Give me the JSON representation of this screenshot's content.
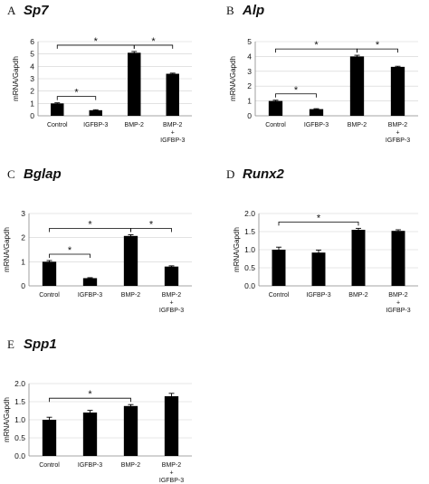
{
  "chart_data": [
    {
      "panel": "A",
      "title": "Sp7",
      "type": "bar",
      "ylabel": "mRNA/Gapdh",
      "ylim": [
        0,
        6
      ],
      "yticks": [
        "0",
        "1",
        "2",
        "3",
        "4",
        "5",
        "6"
      ],
      "categories": [
        [
          "Control"
        ],
        [
          "IGFBP-3"
        ],
        [
          "BMP-2"
        ],
        [
          "BMP-2",
          "+",
          "IGFBP-3"
        ]
      ],
      "values": [
        1.0,
        0.45,
        5.1,
        3.4
      ],
      "errors": [
        0.05,
        0.04,
        0.1,
        0.05
      ],
      "significance": [
        {
          "from": 0,
          "to": 1,
          "label": "*"
        },
        {
          "from": 0,
          "to": 2,
          "label": "*"
        },
        {
          "from": 2,
          "to": 3,
          "label": "*"
        }
      ],
      "grid": true
    },
    {
      "panel": "B",
      "title": "Alp",
      "type": "bar",
      "ylabel": "mRNA/Gapdh",
      "ylim": [
        0,
        5
      ],
      "yticks": [
        "0",
        "1",
        "2",
        "3",
        "4",
        "5"
      ],
      "categories": [
        [
          "Control"
        ],
        [
          "IGFBP-3"
        ],
        [
          "BMP-2"
        ],
        [
          "BMP-2",
          "+",
          "IGFBP-3"
        ]
      ],
      "values": [
        1.0,
        0.45,
        4.0,
        3.3
      ],
      "errors": [
        0.05,
        0.03,
        0.08,
        0.04
      ],
      "significance": [
        {
          "from": 0,
          "to": 1,
          "label": "*"
        },
        {
          "from": 0,
          "to": 2,
          "label": "*"
        },
        {
          "from": 2,
          "to": 3,
          "label": "*"
        }
      ],
      "grid": true
    },
    {
      "panel": "C",
      "title": "Bglap",
      "type": "bar",
      "ylabel": "mRNA/Gapdh",
      "ylim": [
        0,
        3
      ],
      "yticks": [
        "0",
        "1",
        "2",
        "3"
      ],
      "categories": [
        [
          "Control"
        ],
        [
          "IGFBP-3"
        ],
        [
          "BMP-2"
        ],
        [
          "BMP-2",
          "+",
          "IGFBP-3"
        ]
      ],
      "values": [
        1.0,
        0.32,
        2.07,
        0.8
      ],
      "errors": [
        0.05,
        0.02,
        0.05,
        0.03
      ],
      "significance": [
        {
          "from": 0,
          "to": 1,
          "label": "*"
        },
        {
          "from": 0,
          "to": 2,
          "label": "*"
        },
        {
          "from": 2,
          "to": 3,
          "label": "*"
        }
      ],
      "grid": true
    },
    {
      "panel": "D",
      "title": "Runx2",
      "type": "bar",
      "ylabel": "mRNA/Gapdh",
      "ylim": [
        0,
        2.0
      ],
      "yticks": [
        "0.0",
        "0.5",
        "1.0",
        "1.5",
        "2.0"
      ],
      "categories": [
        [
          "Control"
        ],
        [
          "IGFBP-3"
        ],
        [
          "BMP-2"
        ],
        [
          "BMP-2",
          "+",
          "IGFBP-3"
        ]
      ],
      "values": [
        1.0,
        0.92,
        1.55,
        1.52
      ],
      "errors": [
        0.07,
        0.07,
        0.04,
        0.03
      ],
      "significance": [
        {
          "from": 0,
          "to": 2,
          "label": "*"
        }
      ],
      "grid": true
    },
    {
      "panel": "E",
      "title": "Spp1",
      "type": "bar",
      "ylabel": "mRNA/Gapdh",
      "ylim": [
        0,
        2.0
      ],
      "yticks": [
        "0.0",
        "0.5",
        "1.0",
        "1.5",
        "2.0"
      ],
      "categories": [
        [
          "Control"
        ],
        [
          "IGFBP-3"
        ],
        [
          "BMP-2"
        ],
        [
          "BMP-2",
          "+",
          "IGFBP-3"
        ]
      ],
      "values": [
        1.0,
        1.2,
        1.38,
        1.65
      ],
      "errors": [
        0.07,
        0.06,
        0.04,
        0.08
      ],
      "significance": [
        {
          "from": 0,
          "to": 2,
          "label": "*"
        }
      ],
      "grid": true
    }
  ]
}
